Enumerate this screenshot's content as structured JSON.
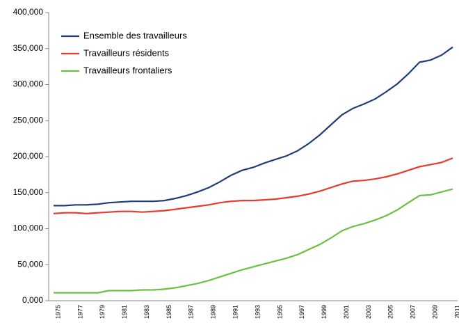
{
  "chart_data": {
    "type": "line",
    "categories": [
      "1975",
      null,
      "1977",
      null,
      "1979",
      null,
      "1981",
      null,
      "1983",
      null,
      "1985",
      null,
      "1987",
      null,
      "1989",
      null,
      "1991",
      null,
      "1993",
      null,
      "1995",
      null,
      "1997",
      null,
      "1999",
      null,
      "2001",
      null,
      "2003",
      null,
      "2005",
      null,
      "2007",
      null,
      "2009",
      null,
      "2011"
    ],
    "series": [
      {
        "name": "Ensemble des travailleurs",
        "color": "#1f3c78",
        "values": [
          132000,
          132000,
          133000,
          133000,
          134000,
          136000,
          137000,
          138000,
          138000,
          138000,
          139000,
          142000,
          146000,
          151000,
          157000,
          165000,
          174000,
          181000,
          185000,
          191000,
          196000,
          201000,
          208000,
          218000,
          230000,
          244000,
          258000,
          267000,
          273000,
          280000,
          290000,
          301000,
          315000,
          331000,
          334000,
          341000,
          352000
        ]
      },
      {
        "name": "Travailleurs résidents",
        "color": "#e8392c",
        "values": [
          121000,
          122000,
          122000,
          121000,
          122000,
          123000,
          124000,
          124000,
          123000,
          124000,
          125000,
          127000,
          129000,
          131000,
          133000,
          136000,
          138000,
          139000,
          139000,
          140000,
          141000,
          143000,
          145000,
          148000,
          152000,
          157000,
          162000,
          166000,
          167000,
          169000,
          172000,
          176000,
          181000,
          186000,
          189000,
          192000,
          198000
        ]
      },
      {
        "name": "Travailleurs frontaliers",
        "color": "#6ac13e",
        "values": [
          11000,
          11000,
          11000,
          11000,
          11000,
          14000,
          14000,
          14000,
          15000,
          15000,
          16000,
          18000,
          21000,
          24000,
          28000,
          33000,
          38000,
          43000,
          47000,
          51000,
          55000,
          59000,
          64000,
          71000,
          78000,
          87000,
          97000,
          103000,
          107000,
          112000,
          118000,
          126000,
          136000,
          146000,
          147000,
          151000,
          155000
        ]
      }
    ],
    "ylim": [
      0,
      400000
    ],
    "yticks": [
      {
        "value": 0,
        "label": "0,000"
      },
      {
        "value": 50000,
        "label": "50,000"
      },
      {
        "value": 100000,
        "label": "100,000"
      },
      {
        "value": 150000,
        "label": "150,000"
      },
      {
        "value": 200000,
        "label": "200,000"
      },
      {
        "value": 250000,
        "label": "250,000"
      },
      {
        "value": 300000,
        "label": "300,000"
      },
      {
        "value": 350000,
        "label": "350,000"
      },
      {
        "value": 400000,
        "label": "400,000"
      }
    ],
    "legend": "upper left",
    "grid": false
  }
}
